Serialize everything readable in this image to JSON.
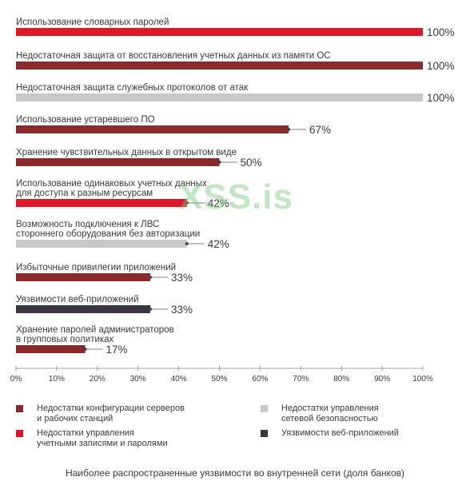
{
  "colors": {
    "server_config": "#8b2a2a",
    "account_mgmt": "#e0162b",
    "network_security": "#c8c8c8",
    "web_apps": "#3b3445"
  },
  "chart_data": {
    "type": "bar",
    "orientation": "horizontal",
    "title": "Наиболее распространенные уязвимости во внутренней сети (доля банков)",
    "xlim": [
      0,
      100
    ],
    "x_ticks": [
      "0%",
      "10%",
      "20%",
      "30%",
      "40%",
      "50%",
      "60%",
      "70%",
      "80%",
      "90%",
      "100%"
    ],
    "grid": false,
    "legend_position": "bottom",
    "categories": [
      [
        "Использование словарных паролей"
      ],
      [
        "Недостаточная защита от восстановления учетных данных из памяти ОС"
      ],
      [
        "Недостаточная защита служебных протоколов от атак"
      ],
      [
        "Использование устаревшего ПО"
      ],
      [
        "Хранение чувствительных данных в открытом виде"
      ],
      [
        "Использование одинаковых учетных данных",
        "для доступа к разным ресурсам"
      ],
      [
        "Возможность подключения к ЛВС",
        "стороннего оборудования без авторизации"
      ],
      [
        "Избыточные привилегии приложений"
      ],
      [
        "Уязвимости веб-приложений"
      ],
      [
        "Хранение паролей администраторов",
        "в групповых политиках"
      ]
    ],
    "values": [
      100,
      100,
      100,
      67,
      50,
      42,
      42,
      33,
      33,
      17
    ],
    "value_labels": [
      "100%",
      "100%",
      "100%",
      "67%",
      "50%",
      "42%",
      "42%",
      "33%",
      "33%",
      "17%"
    ],
    "series_index": [
      1,
      0,
      2,
      0,
      0,
      1,
      2,
      0,
      3,
      0
    ],
    "series": [
      {
        "name": "Недостатки конфигурации серверов и рабочих станций",
        "color": "#8b2a2a"
      },
      {
        "name": "Недостатки управления учетными записями и паролями",
        "color": "#e0162b"
      },
      {
        "name": "Недостатки управления сетевой безопасностью",
        "color": "#c8c8c8"
      },
      {
        "name": "Уязвимости веб-приложений",
        "color": "#3b3445"
      }
    ]
  },
  "legend": {
    "server_config": [
      "Недостатки конфигурации серверов",
      "и рабочих станций"
    ],
    "account_mgmt": [
      "Недостатки управления",
      "учетными записями и паролями"
    ],
    "network_security": [
      "Недостатки управления",
      "сетевой безопасностью"
    ],
    "web_apps": [
      "Уязвимости веб-приложений"
    ]
  },
  "watermark": "XSS.is",
  "caption": "Наиболее распространенные уязвимости во внутренней сети (доля банков)"
}
